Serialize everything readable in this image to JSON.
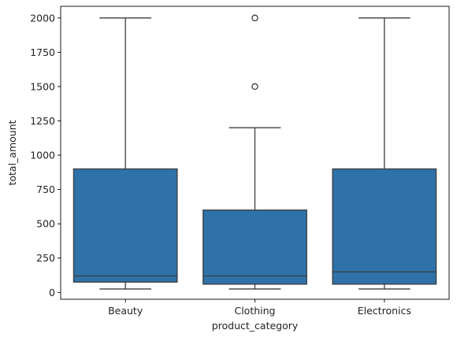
{
  "chart_data": {
    "type": "box",
    "xlabel": "product_category",
    "ylabel": "total_amount",
    "ylim": [
      -50,
      2085
    ],
    "yticks": [
      0,
      250,
      500,
      750,
      1000,
      1250,
      1500,
      1750,
      2000
    ],
    "categories": [
      "Beauty",
      "Clothing",
      "Electronics"
    ],
    "box_color": "#2f72a9",
    "line_color": "#3d3d3d",
    "grid": false,
    "legend": "none",
    "boxes": [
      {
        "category": "Beauty",
        "whisker_low": 25,
        "q1": 75,
        "median": 120,
        "q3": 900,
        "whisker_high": 2000,
        "outliers": []
      },
      {
        "category": "Clothing",
        "whisker_low": 25,
        "q1": 60,
        "median": 120,
        "q3": 600,
        "whisker_high": 1200,
        "outliers": [
          1500,
          2000
        ]
      },
      {
        "category": "Electronics",
        "whisker_low": 25,
        "q1": 60,
        "median": 150,
        "q3": 900,
        "whisker_high": 2000,
        "outliers": []
      }
    ]
  }
}
